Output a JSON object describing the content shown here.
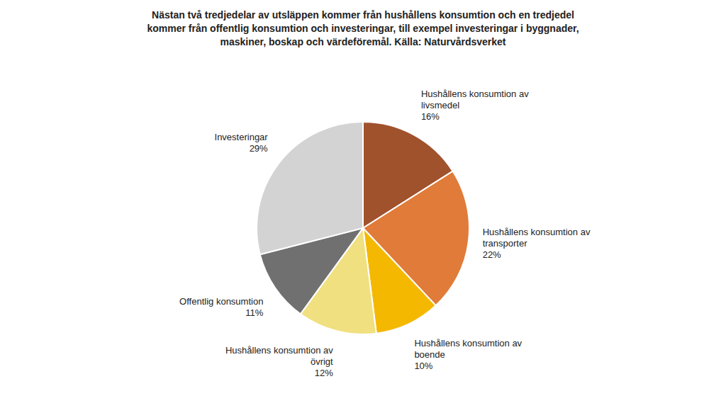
{
  "chart_data": {
    "type": "pie",
    "title": "Nästan två tredjedelar av utsläppen kommer från hushållens konsumtion och en tredjedel\nkommer från offentlig konsumtion och investeringar, till exempel investeringar i byggnader,\nmaskiner, boskap och värdeföremål. Källa: Naturvårdsverket",
    "categories": [
      "Hushållens konsumtion av\nlivsmedel",
      "Hushållens konsumtion av\ntransporter",
      "Hushållens konsumtion av\nboende",
      "Hushållens konsumtion av\növrigt",
      "Offentlig konsumtion",
      "Investeringar"
    ],
    "values": [
      16,
      22,
      10,
      12,
      11,
      29
    ],
    "value_labels": [
      "16%",
      "22%",
      "10%",
      "12%",
      "11%",
      "29%"
    ],
    "data_labels": true,
    "colors": [
      "#A0522D",
      "#E07B39",
      "#F5B800",
      "#F0E080",
      "#707070",
      "#D3D3D3"
    ]
  }
}
